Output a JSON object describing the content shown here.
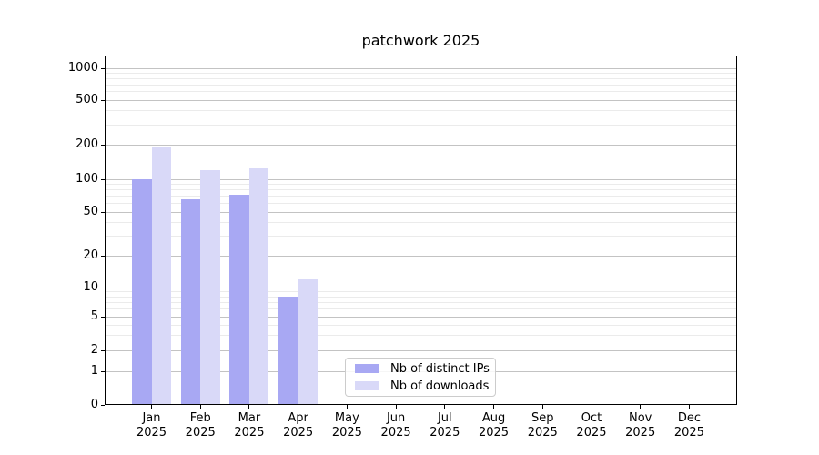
{
  "chart_data": {
    "type": "bar",
    "title": "patchwork 2025",
    "xlabel": "",
    "ylabel": "",
    "grid": true,
    "y_scale": "symlog",
    "ylim": [
      0,
      1300
    ],
    "legend_position": "lower center",
    "categories": [
      {
        "month": "Jan",
        "year": "2025"
      },
      {
        "month": "Feb",
        "year": "2025"
      },
      {
        "month": "Mar",
        "year": "2025"
      },
      {
        "month": "Apr",
        "year": "2025"
      },
      {
        "month": "May",
        "year": "2025"
      },
      {
        "month": "Jun",
        "year": "2025"
      },
      {
        "month": "Jul",
        "year": "2025"
      },
      {
        "month": "Aug",
        "year": "2025"
      },
      {
        "month": "Sep",
        "year": "2025"
      },
      {
        "month": "Oct",
        "year": "2025"
      },
      {
        "month": "Nov",
        "year": "2025"
      },
      {
        "month": "Dec",
        "year": "2025"
      }
    ],
    "series": [
      {
        "name": "Nb of distinct IPs",
        "color": "#a8a8f3",
        "values": [
          100,
          65,
          72,
          8,
          null,
          null,
          null,
          null,
          null,
          null,
          null,
          null
        ]
      },
      {
        "name": "Nb of downloads",
        "color": "#d9d9f8",
        "values": [
          190,
          120,
          125,
          12,
          null,
          null,
          null,
          null,
          null,
          null,
          null,
          null
        ]
      }
    ],
    "y_axis": {
      "tick_values": [
        0,
        1,
        2,
        5,
        10,
        20,
        50,
        100,
        200,
        500,
        1000
      ],
      "tick_labels": [
        "0",
        "1",
        "2",
        "5",
        "10",
        "20",
        "50",
        "100",
        "200",
        "500",
        "1000"
      ],
      "minor_tick_values": [
        3,
        4,
        6,
        7,
        8,
        9,
        30,
        40,
        60,
        70,
        80,
        90,
        300,
        400,
        600,
        700,
        800,
        900
      ]
    }
  }
}
